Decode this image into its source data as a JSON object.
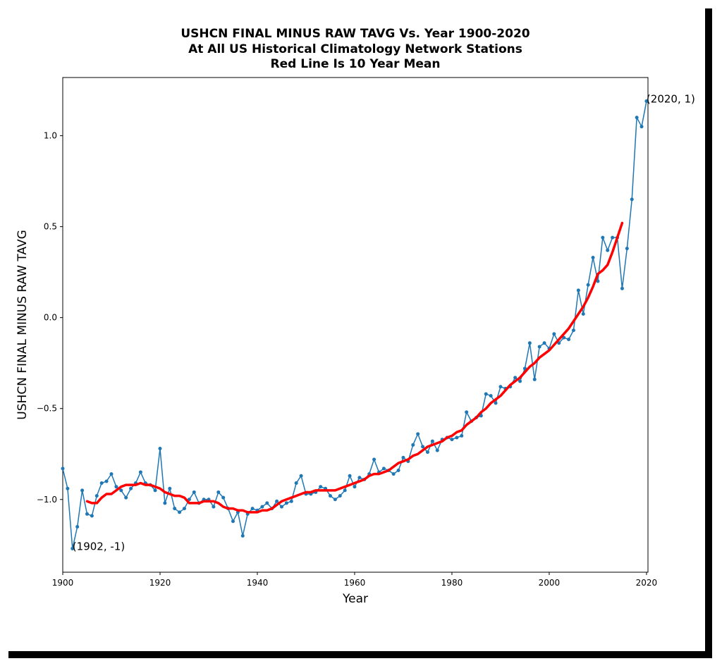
{
  "chart_data": {
    "type": "line",
    "title": [
      "USHCN FINAL MINUS RAW TAVG Vs. Year 1900-2020",
      "At All US Historical Climatology Network Stations",
      "Red Line Is 10 Year Mean"
    ],
    "xlabel": "Year",
    "ylabel": "USHCN FINAL MINUS RAW TAVG",
    "xlim": [
      1900,
      2020.3
    ],
    "ylim": [
      -1.4,
      1.32
    ],
    "xticks": [
      1900,
      1920,
      1940,
      1960,
      1980,
      2000,
      2020
    ],
    "yticks": [
      {
        "value": -1.0,
        "label": "−1.0"
      },
      {
        "value": -0.5,
        "label": "−0.5"
      },
      {
        "value": 0,
        "label": "0.0"
      },
      0.5,
      {
        "value": 1.0,
        "label": "1.0"
      }
    ],
    "grid": false,
    "series": [
      {
        "color": "#1f77b4",
        "marker": true,
        "x": [
          1900,
          1901,
          1902,
          1903,
          1904,
          1905,
          1906,
          1907,
          1908,
          1909,
          1910,
          1911,
          1912,
          1913,
          1914,
          1915,
          1916,
          1917,
          1918,
          1919,
          1920,
          1921,
          1922,
          1923,
          1924,
          1925,
          1926,
          1927,
          1928,
          1929,
          1930,
          1931,
          1932,
          1933,
          1934,
          1935,
          1936,
          1937,
          1938,
          1939,
          1940,
          1941,
          1942,
          1943,
          1944,
          1945,
          1946,
          1947,
          1948,
          1949,
          1950,
          1951,
          1952,
          1953,
          1954,
          1955,
          1956,
          1957,
          1958,
          1959,
          1960,
          1961,
          1962,
          1963,
          1964,
          1965,
          1966,
          1967,
          1968,
          1969,
          1970,
          1971,
          1972,
          1973,
          1974,
          1975,
          1976,
          1977,
          1978,
          1979,
          1980,
          1981,
          1982,
          1983,
          1984,
          1985,
          1986,
          1987,
          1988,
          1989,
          1990,
          1991,
          1992,
          1993,
          1994,
          1995,
          1996,
          1997,
          1998,
          1999,
          2000,
          2001,
          2002,
          2003,
          2004,
          2005,
          2006,
          2007,
          2008,
          2009,
          2010,
          2011,
          2012,
          2013,
          2014,
          2015,
          2016,
          2017,
          2018,
          2019,
          2020
        ],
        "values": [
          -0.83,
          -0.94,
          -1.27,
          -1.15,
          -0.95,
          -1.08,
          -1.09,
          -0.98,
          -0.91,
          -0.9,
          -0.86,
          -0.93,
          -0.95,
          -0.99,
          -0.94,
          -0.91,
          -0.85,
          -0.91,
          -0.92,
          -0.95,
          -0.72,
          -1.02,
          -0.94,
          -1.05,
          -1.07,
          -1.05,
          -1.0,
          -0.96,
          -1.02,
          -1.0,
          -1.0,
          -1.04,
          -0.96,
          -0.99,
          -1.05,
          -1.12,
          -1.07,
          -1.2,
          -1.08,
          -1.05,
          -1.06,
          -1.04,
          -1.02,
          -1.05,
          -1.01,
          -1.04,
          -1.02,
          -1.01,
          -0.91,
          -0.87,
          -0.97,
          -0.97,
          -0.96,
          -0.93,
          -0.94,
          -0.98,
          -1.0,
          -0.98,
          -0.95,
          -0.87,
          -0.93,
          -0.88,
          -0.89,
          -0.86,
          -0.78,
          -0.85,
          -0.83,
          -0.84,
          -0.86,
          -0.84,
          -0.77,
          -0.79,
          -0.7,
          -0.64,
          -0.71,
          -0.74,
          -0.68,
          -0.73,
          -0.67,
          -0.66,
          -0.67,
          -0.66,
          -0.65,
          -0.52,
          -0.57,
          -0.55,
          -0.54,
          -0.42,
          -0.43,
          -0.47,
          -0.38,
          -0.39,
          -0.38,
          -0.33,
          -0.35,
          -0.28,
          -0.14,
          -0.34,
          -0.16,
          -0.14,
          -0.17,
          -0.09,
          -0.14,
          -0.11,
          -0.12,
          -0.07,
          0.15,
          0.02,
          0.18,
          0.33,
          0.2,
          0.44,
          0.37,
          0.44,
          0.44,
          0.16,
          0.38,
          0.65,
          1.1,
          1.05,
          1.19
        ]
      },
      {
        "color": "#ff0000",
        "marker": false,
        "x": [
          1905,
          1906,
          1907,
          1908,
          1909,
          1910,
          1911,
          1912,
          1913,
          1914,
          1915,
          1916,
          1917,
          1918,
          1919,
          1920,
          1921,
          1922,
          1923,
          1924,
          1925,
          1926,
          1927,
          1928,
          1929,
          1930,
          1931,
          1932,
          1933,
          1934,
          1935,
          1936,
          1937,
          1938,
          1939,
          1940,
          1941,
          1942,
          1943,
          1944,
          1945,
          1946,
          1947,
          1948,
          1949,
          1950,
          1951,
          1952,
          1953,
          1954,
          1955,
          1956,
          1957,
          1958,
          1959,
          1960,
          1961,
          1962,
          1963,
          1964,
          1965,
          1966,
          1967,
          1968,
          1969,
          1970,
          1971,
          1972,
          1973,
          1974,
          1975,
          1976,
          1977,
          1978,
          1979,
          1980,
          1981,
          1982,
          1983,
          1984,
          1985,
          1986,
          1987,
          1988,
          1989,
          1990,
          1991,
          1992,
          1993,
          1994,
          1995,
          1996,
          1997,
          1998,
          1999,
          2000,
          2001,
          2002,
          2003,
          2004,
          2005,
          2006,
          2007,
          2008,
          2009,
          2010,
          2011,
          2012,
          2013,
          2014,
          2015
        ],
        "values": [
          -1.01,
          -1.02,
          -1.02,
          -0.99,
          -0.97,
          -0.97,
          -0.95,
          -0.93,
          -0.92,
          -0.92,
          -0.92,
          -0.91,
          -0.92,
          -0.92,
          -0.93,
          -0.94,
          -0.96,
          -0.97,
          -0.98,
          -0.98,
          -0.99,
          -1.02,
          -1.02,
          -1.02,
          -1.01,
          -1.01,
          -1.01,
          -1.02,
          -1.04,
          -1.05,
          -1.05,
          -1.06,
          -1.06,
          -1.07,
          -1.07,
          -1.07,
          -1.06,
          -1.06,
          -1.05,
          -1.03,
          -1.01,
          -1.0,
          -0.99,
          -0.98,
          -0.97,
          -0.96,
          -0.96,
          -0.95,
          -0.95,
          -0.95,
          -0.95,
          -0.95,
          -0.94,
          -0.93,
          -0.92,
          -0.91,
          -0.9,
          -0.89,
          -0.87,
          -0.86,
          -0.86,
          -0.85,
          -0.84,
          -0.82,
          -0.8,
          -0.79,
          -0.78,
          -0.76,
          -0.75,
          -0.73,
          -0.71,
          -0.7,
          -0.69,
          -0.68,
          -0.66,
          -0.65,
          -0.63,
          -0.62,
          -0.59,
          -0.57,
          -0.55,
          -0.52,
          -0.5,
          -0.47,
          -0.45,
          -0.43,
          -0.4,
          -0.37,
          -0.35,
          -0.33,
          -0.3,
          -0.27,
          -0.25,
          -0.22,
          -0.2,
          -0.18,
          -0.15,
          -0.12,
          -0.09,
          -0.06,
          -0.02,
          0.02,
          0.06,
          0.11,
          0.17,
          0.24,
          0.26,
          0.29,
          0.36,
          0.44,
          0.52
        ]
      }
    ],
    "annotations": [
      {
        "text": "(1902, -1)",
        "x": 1902,
        "y": -1.27
      },
      {
        "text": "(2020, 1)",
        "x": 2020,
        "y": 1.19
      }
    ]
  }
}
